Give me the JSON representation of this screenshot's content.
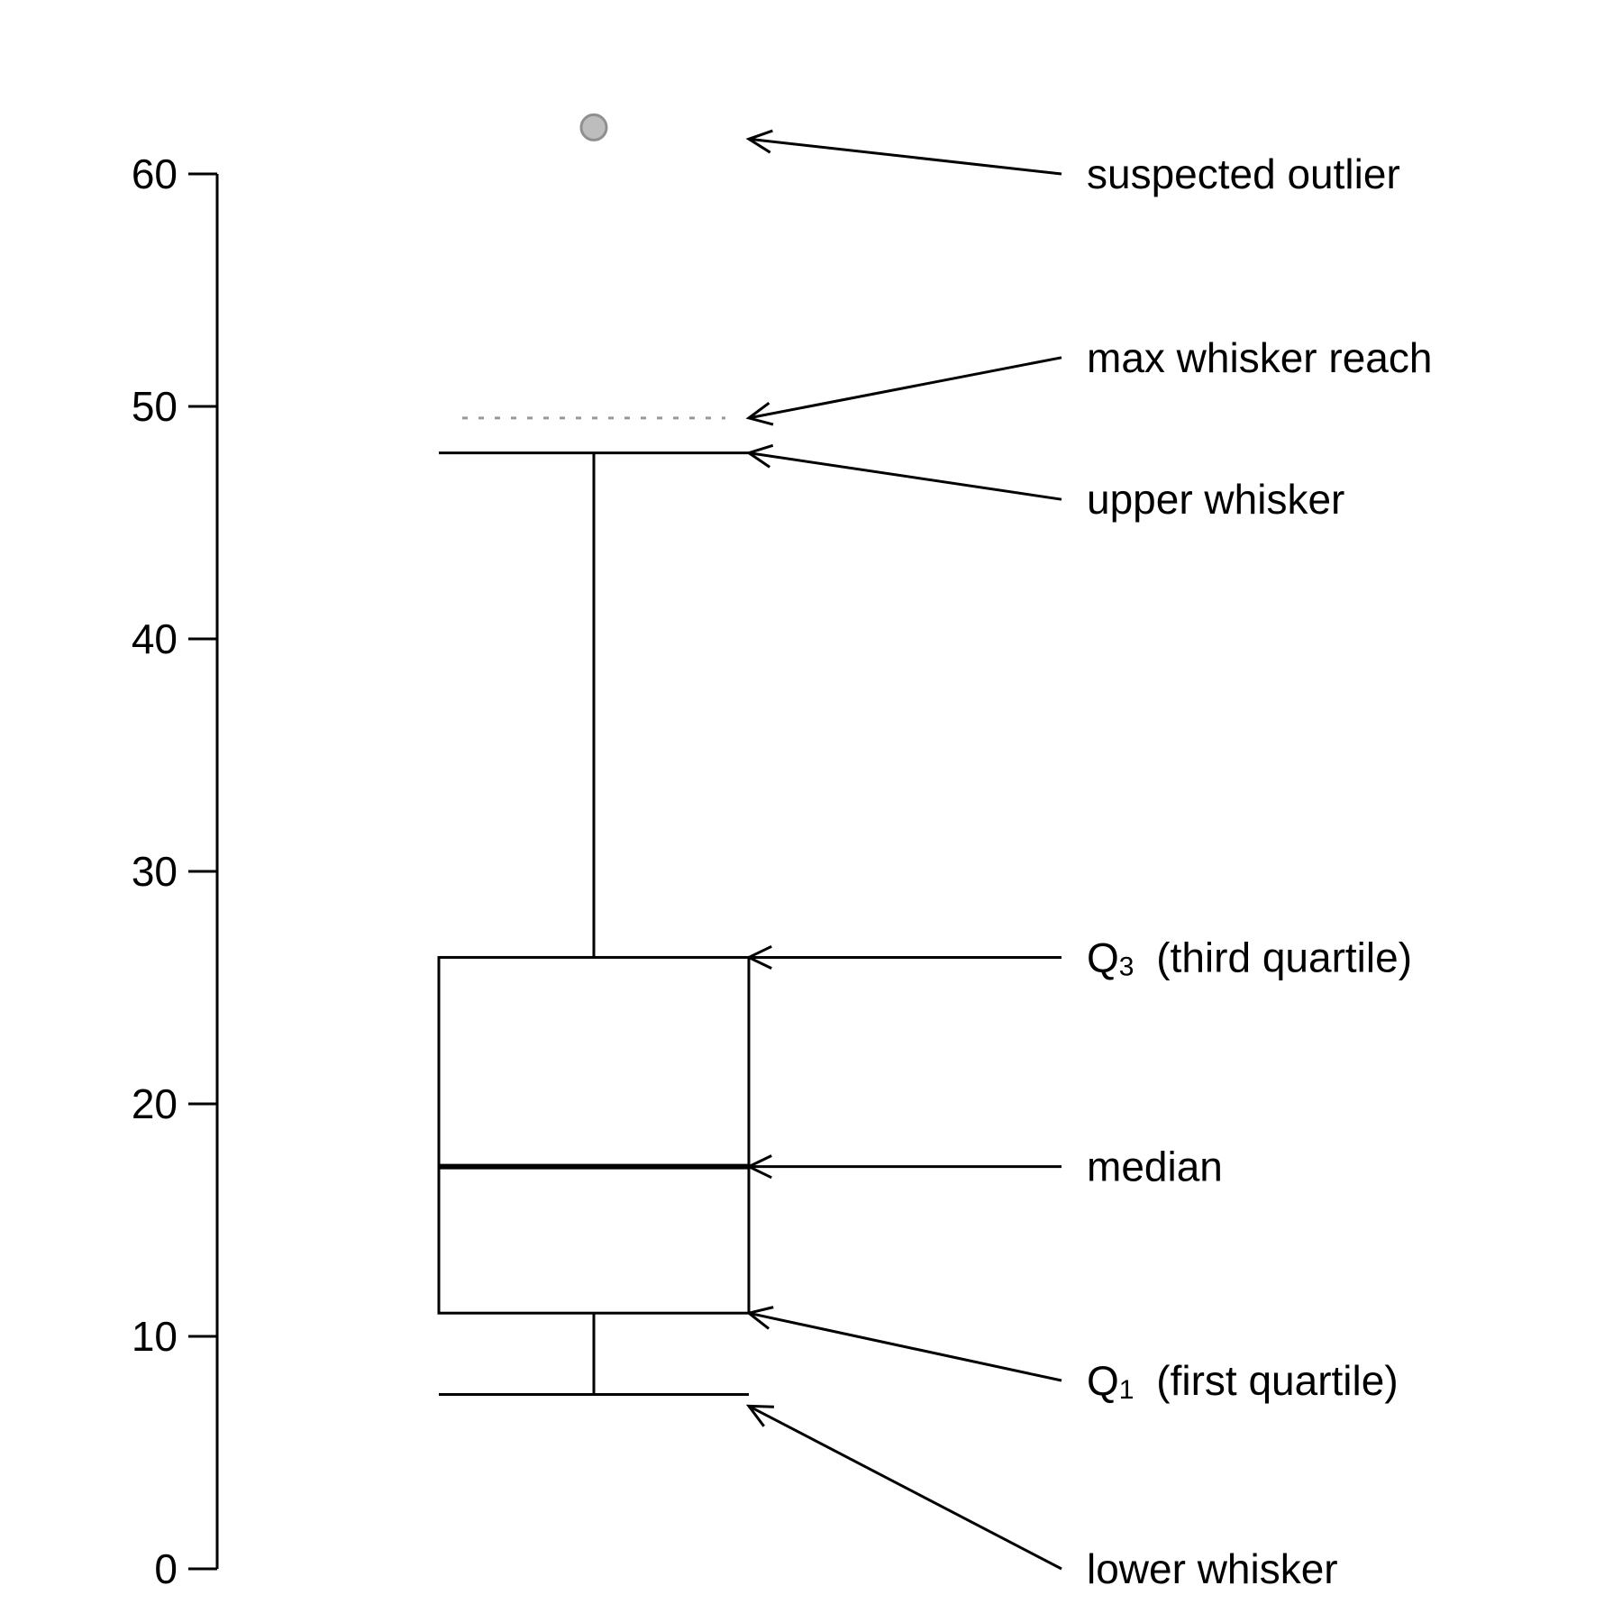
{
  "chart_data": {
    "type": "box",
    "title": "",
    "xlabel": "",
    "ylabel": "",
    "ylim": [
      0,
      60
    ],
    "yticks": [
      0,
      10,
      20,
      30,
      40,
      50,
      60
    ],
    "grid": false,
    "legend": "none",
    "box": {
      "lower_whisker": 7.5,
      "q1": 11,
      "median": 17.3,
      "q3": 26.3,
      "upper_whisker": 48,
      "max_whisker_reach": 49.5,
      "outliers": [
        62
      ]
    },
    "annotations": [
      {
        "id": "suspected-outlier",
        "label": "suspected outlier",
        "label_y": 60,
        "target_y": 61.5
      },
      {
        "id": "max-whisker-reach",
        "label": "max whisker reach",
        "label_y": 52.1,
        "target_y": 49.5
      },
      {
        "id": "upper-whisker",
        "label": "upper whisker",
        "label_y": 46,
        "target_y": 48
      },
      {
        "id": "q3",
        "label_main": "Q",
        "label_sub": "3",
        "label_rest": " (third quartile)",
        "label_y": 26.3,
        "target_y": 26.3
      },
      {
        "id": "median",
        "label": "median",
        "label_y": 17.3,
        "target_y": 17.3
      },
      {
        "id": "q1",
        "label_main": "Q",
        "label_sub": "1",
        "label_rest": " (first quartile)",
        "label_y": 8.1,
        "target_y": 11
      },
      {
        "id": "lower-whisker",
        "label": "lower whisker",
        "label_y": 0,
        "target_y": 7
      },
      {
        "id": "_",
        "label": ""
      }
    ],
    "colors": {
      "line": "#000000",
      "outlier_fill": "#bdbdbd",
      "outlier_stroke": "#8f8f8f",
      "reach_line": "#999999"
    }
  }
}
